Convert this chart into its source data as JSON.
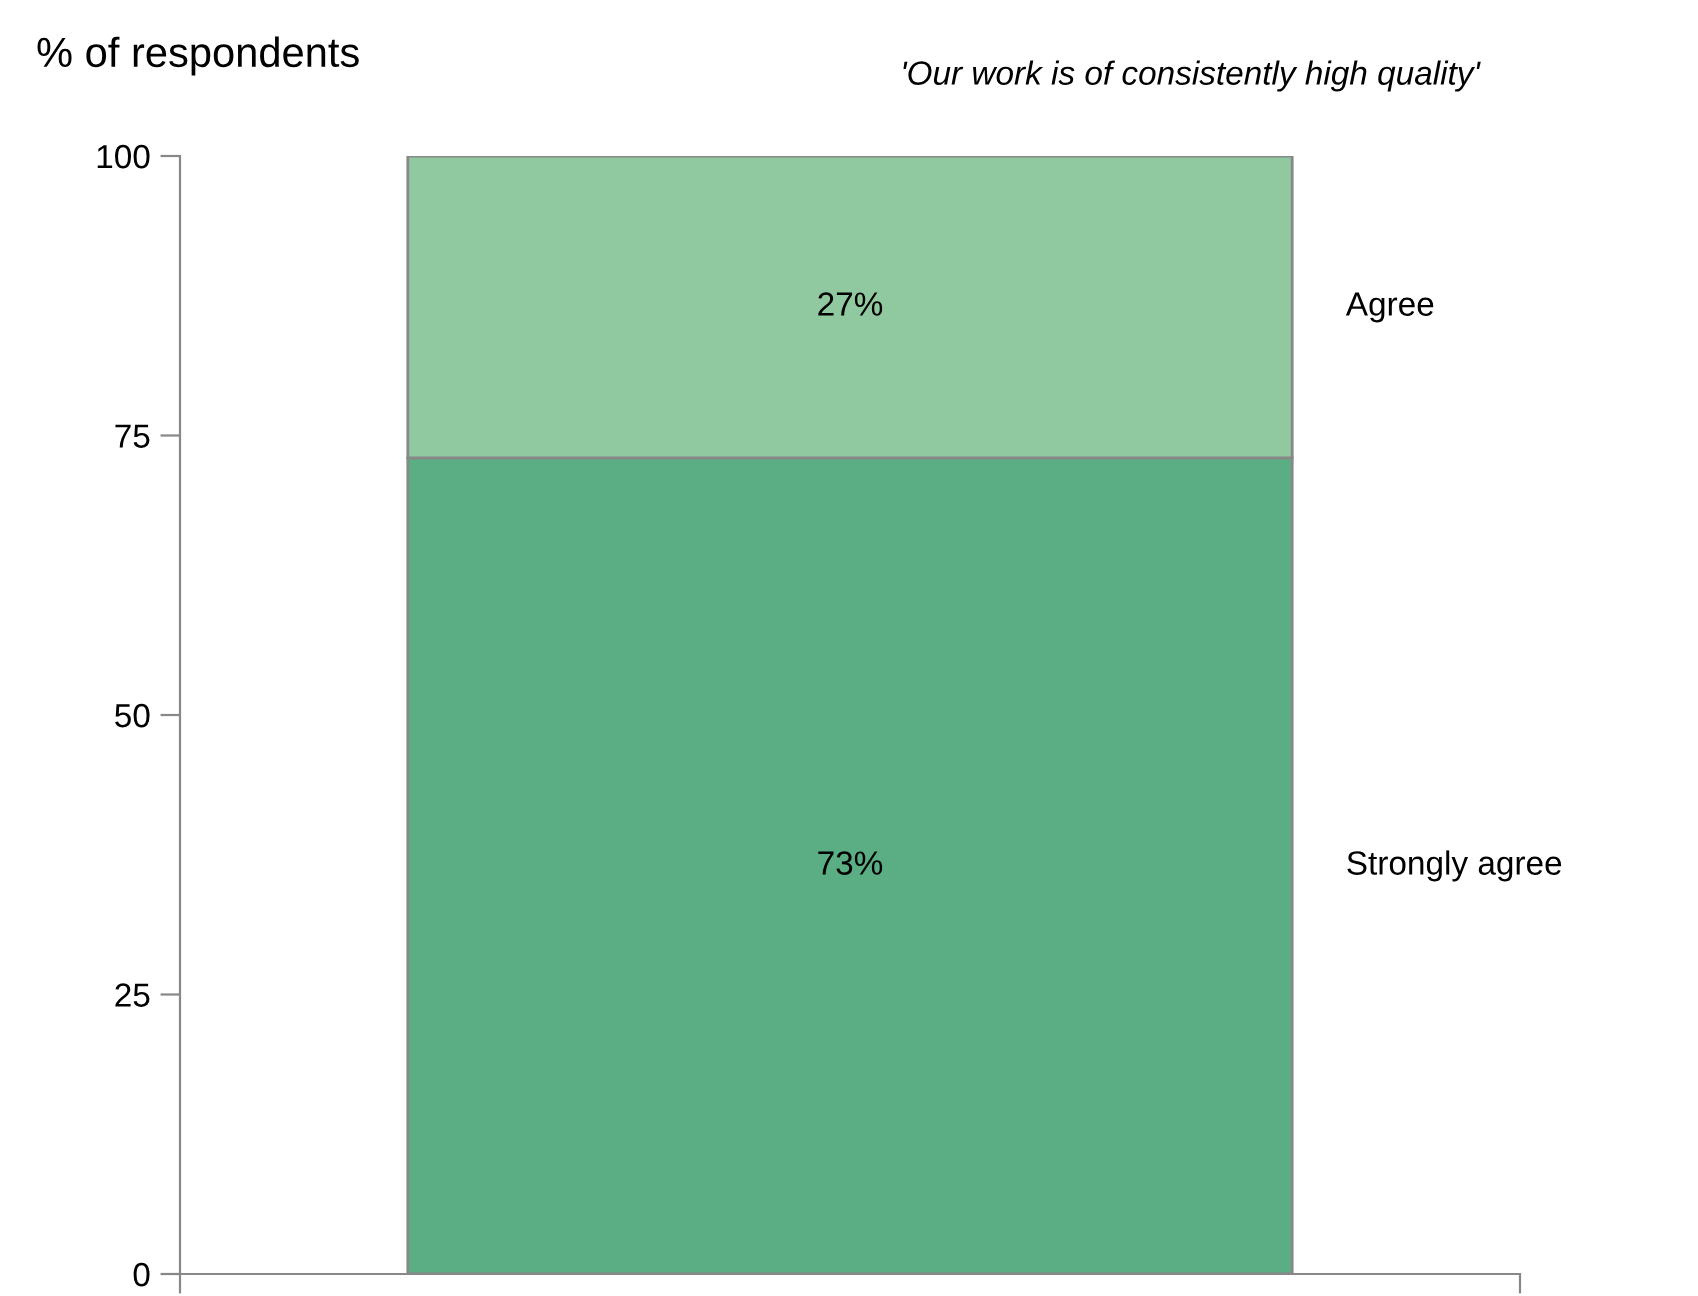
{
  "chart_data": {
    "type": "bar",
    "stacked": true,
    "title": "'Our work is of consistently high quality'",
    "ylabel": "% of respondents",
    "categories": [
      null
    ],
    "series": [
      {
        "name": "Strongly agree",
        "color": "#5bad83",
        "values": [
          73
        ],
        "value_labels": [
          "73%"
        ]
      },
      {
        "name": "Agree",
        "color": "#90c8a0",
        "values": [
          27
        ],
        "value_labels": [
          "27%"
        ]
      }
    ],
    "ylim": [
      0,
      100
    ],
    "yticks": [
      0,
      25,
      50,
      75,
      100
    ],
    "grid": false,
    "legend": false
  }
}
